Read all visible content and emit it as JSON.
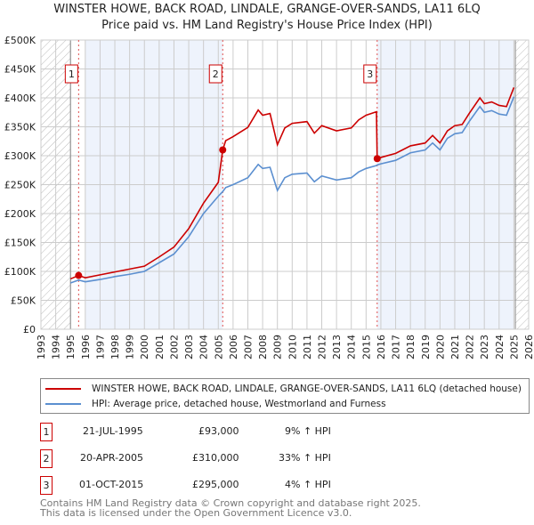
{
  "chart_data": {
    "type": "line",
    "title": "WINSTER HOWE, BACK ROAD, LINDALE, GRANGE-OVER-SANDS, LA11 6LQ",
    "subtitle": "Price paid vs. HM Land Registry's House Price Index (HPI)",
    "xlim": [
      1993,
      2026
    ],
    "ylim": [
      0,
      500000
    ],
    "yticks": [
      "£0",
      "£50K",
      "£100K",
      "£150K",
      "£200K",
      "£250K",
      "£300K",
      "£350K",
      "£400K",
      "£450K",
      "£500K"
    ],
    "xticks": [
      "1993",
      "1994",
      "1995",
      "1996",
      "1997",
      "1998",
      "1999",
      "2000",
      "2001",
      "2002",
      "2003",
      "2004",
      "2005",
      "2006",
      "2007",
      "2008",
      "2009",
      "2010",
      "2011",
      "2012",
      "2013",
      "2014",
      "2015",
      "2016",
      "2017",
      "2018",
      "2019",
      "2020",
      "2021",
      "2022",
      "2023",
      "2024",
      "2025",
      "2026"
    ],
    "series": [
      {
        "name": "WINSTER HOWE, BACK ROAD, LINDALE, GRANGE-OVER-SANDS, LA11 6LQ (detached house)",
        "color": "#cc0000",
        "x": [
          1995,
          1995.55,
          1996,
          1997,
          1998,
          1999,
          2000,
          2001,
          2002,
          2003,
          2004,
          2005,
          2005.3,
          2005.5,
          2006,
          2007,
          2007.7,
          2008,
          2008.5,
          2009,
          2009.5,
          2010,
          2011,
          2011.5,
          2012,
          2013,
          2014,
          2014.5,
          2015,
          2015.7,
          2015.75,
          2016,
          2017,
          2018,
          2019,
          2019.5,
          2020,
          2020.5,
          2021,
          2021.5,
          2022,
          2022.7,
          2023,
          2023.5,
          2024,
          2024.5,
          2025
        ],
        "y": [
          87,
          93,
          89,
          94,
          99,
          104,
          109,
          125,
          142,
          174,
          218,
          254,
          310,
          326,
          333,
          349,
          379,
          370,
          373,
          319,
          348,
          356,
          359,
          339,
          352,
          343,
          348,
          362,
          370,
          376,
          295,
          297,
          304,
          317,
          322,
          335,
          322,
          343,
          352,
          354,
          374,
          400,
          390,
          393,
          387,
          385,
          418
        ]
      },
      {
        "name": "HPI: Average price, detached house, Westmorland and Furness",
        "color": "#5b8fd0",
        "x": [
          1995,
          1995.55,
          1996,
          1997,
          1998,
          1999,
          2000,
          2001,
          2002,
          2003,
          2004,
          2005,
          2005.3,
          2005.5,
          2006,
          2007,
          2007.7,
          2008,
          2008.5,
          2009,
          2009.5,
          2010,
          2011,
          2011.5,
          2012,
          2013,
          2014,
          2014.5,
          2015,
          2015.7,
          2015.75,
          2016,
          2017,
          2018,
          2019,
          2019.5,
          2020,
          2020.5,
          2021,
          2021.5,
          2022,
          2022.7,
          2023,
          2023.5,
          2024,
          2024.5,
          2025
        ],
        "y": [
          80,
          85,
          82,
          86,
          91,
          95,
          100,
          115,
          130,
          160,
          200,
          230,
          238,
          245,
          250,
          262,
          285,
          278,
          280,
          240,
          262,
          268,
          270,
          255,
          265,
          258,
          262,
          272,
          278,
          283,
          284,
          286,
          292,
          305,
          310,
          322,
          310,
          330,
          338,
          340,
          360,
          385,
          375,
          378,
          372,
          370,
          402
        ]
      }
    ],
    "y_units": "thousands GBP",
    "sales": [
      {
        "label": "1",
        "x": 1995.55,
        "y": 93
      },
      {
        "label": "2",
        "x": 2005.3,
        "y": 310
      },
      {
        "label": "3",
        "x": 2015.75,
        "y": 295
      }
    ],
    "legend_placement": "below"
  },
  "table": [
    {
      "num": "1",
      "date": "21-JUL-1995",
      "price": "£93,000",
      "hpi": "9% ↑ HPI"
    },
    {
      "num": "2",
      "date": "20-APR-2005",
      "price": "£310,000",
      "hpi": "33% ↑ HPI"
    },
    {
      "num": "3",
      "date": "01-OCT-2015",
      "price": "£295,000",
      "hpi": "4% ↑ HPI"
    }
  ],
  "footer": [
    "Contains HM Land Registry data © Crown copyright and database right 2025.",
    "This data is licensed under the Open Government Licence v3.0."
  ]
}
